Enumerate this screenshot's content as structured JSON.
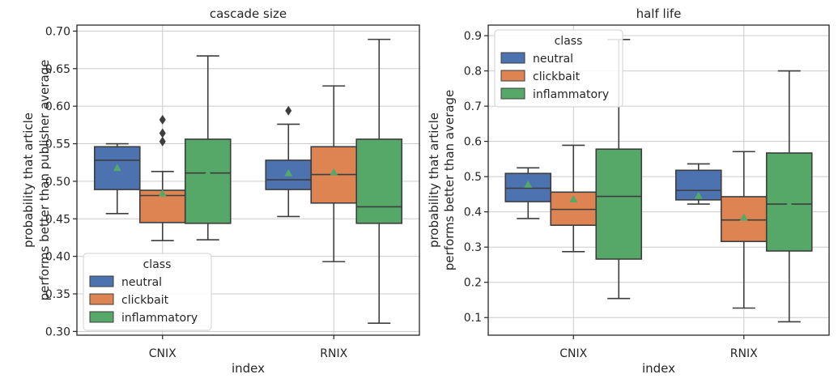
{
  "chart_data": [
    {
      "type": "box",
      "title": "cascade size",
      "xlabel": "index",
      "ylabel_lines": [
        "probability that article",
        "performs better than publisher average"
      ],
      "categories": [
        "CNIX",
        "RNIX"
      ],
      "ylim": [
        0.295,
        0.708
      ],
      "yticks": [
        0.3,
        0.35,
        0.4,
        0.45,
        0.5,
        0.55,
        0.6,
        0.65,
        0.7
      ],
      "grid": true,
      "legend": {
        "title": "class",
        "placement": "lower-left",
        "entries": [
          "neutral",
          "clickbait",
          "inflammatory"
        ]
      },
      "series": [
        {
          "name": "neutral",
          "color": "#4c72b0",
          "boxes": [
            {
              "category": "CNIX",
              "whislo": 0.457,
              "q1": 0.489,
              "median": 0.528,
              "q3": 0.546,
              "whishi": 0.55,
              "mean": 0.518,
              "fliers": []
            },
            {
              "category": "RNIX",
              "whislo": 0.453,
              "q1": 0.489,
              "median": 0.502,
              "q3": 0.528,
              "whishi": 0.576,
              "mean": 0.511,
              "fliers": [
                0.594
              ]
            }
          ]
        },
        {
          "name": "clickbait",
          "color": "#dd8452",
          "boxes": [
            {
              "category": "CNIX",
              "whislo": 0.421,
              "q1": 0.445,
              "median": 0.481,
              "q3": 0.488,
              "whishi": 0.513,
              "mean": 0.484,
              "fliers": [
                0.553,
                0.564,
                0.582
              ]
            },
            {
              "category": "RNIX",
              "whislo": 0.393,
              "q1": 0.471,
              "median": 0.509,
              "q3": 0.546,
              "whishi": 0.627,
              "mean": 0.512,
              "fliers": []
            }
          ]
        },
        {
          "name": "inflammatory",
          "color": "#55a868",
          "boxes": [
            {
              "category": "CNIX",
              "whislo": 0.422,
              "q1": 0.444,
              "median": 0.511,
              "q3": 0.556,
              "whishi": 0.667,
              "mean": 0.511,
              "fliers": []
            },
            {
              "category": "RNIX",
              "whislo": 0.311,
              "q1": 0.444,
              "median": 0.466,
              "q3": 0.556,
              "whishi": 0.689,
              "mean": 0.492,
              "fliers": []
            }
          ]
        }
      ]
    },
    {
      "type": "box",
      "title": "half life",
      "xlabel": "index",
      "ylabel_lines": [
        "probability that article",
        "performs better than average"
      ],
      "categories": [
        "CNIX",
        "RNIX"
      ],
      "ylim": [
        0.05,
        0.93
      ],
      "yticks": [
        0.1,
        0.2,
        0.3,
        0.4,
        0.5,
        0.6,
        0.7,
        0.8,
        0.9
      ],
      "grid": true,
      "legend": {
        "title": "class",
        "placement": "upper-left",
        "entries": [
          "neutral",
          "clickbait",
          "inflammatory"
        ]
      },
      "series": [
        {
          "name": "neutral",
          "color": "#4c72b0",
          "boxes": [
            {
              "category": "CNIX",
              "whislo": 0.381,
              "q1": 0.429,
              "median": 0.467,
              "q3": 0.509,
              "whishi": 0.525,
              "mean": 0.478,
              "fliers": []
            },
            {
              "category": "RNIX",
              "whislo": 0.422,
              "q1": 0.434,
              "median": 0.461,
              "q3": 0.518,
              "whishi": 0.536,
              "mean": 0.446,
              "fliers": []
            }
          ]
        },
        {
          "name": "clickbait",
          "color": "#dd8452",
          "boxes": [
            {
              "category": "CNIX",
              "whislo": 0.287,
              "q1": 0.362,
              "median": 0.407,
              "q3": 0.456,
              "whishi": 0.589,
              "mean": 0.436,
              "fliers": []
            },
            {
              "category": "RNIX",
              "whislo": 0.127,
              "q1": 0.316,
              "median": 0.377,
              "q3": 0.443,
              "whishi": 0.571,
              "mean": 0.384,
              "fliers": []
            }
          ]
        },
        {
          "name": "inflammatory",
          "color": "#55a868",
          "boxes": [
            {
              "category": "CNIX",
              "whislo": 0.154,
              "q1": 0.266,
              "median": 0.444,
              "q3": 0.578,
              "whishi": 0.889,
              "mean": 0.462,
              "fliers": []
            },
            {
              "category": "RNIX",
              "whislo": 0.088,
              "q1": 0.289,
              "median": 0.422,
              "q3": 0.567,
              "whishi": 0.8,
              "mean": 0.422,
              "fliers": []
            }
          ]
        }
      ]
    }
  ]
}
